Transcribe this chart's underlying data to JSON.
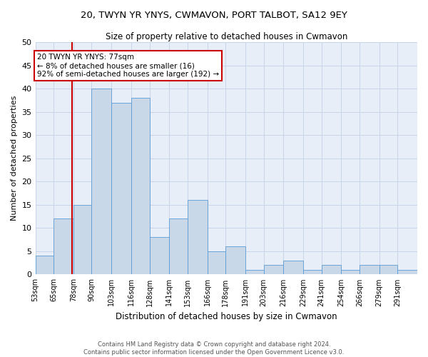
{
  "title": "20, TWYN YR YNYS, CWMAVON, PORT TALBOT, SA12 9EY",
  "subtitle": "Size of property relative to detached houses in Cwmavon",
  "xlabel": "Distribution of detached houses by size in Cwmavon",
  "ylabel": "Number of detached properties",
  "bar_color": "#c8d8e8",
  "bar_edge_color": "#5b9bd5",
  "grid_color": "#c8d4e8",
  "background_color": "#e8eef8",
  "vline_x": 77,
  "vline_color": "#cc0000",
  "annotation_box_color": "#cc0000",
  "annotation_lines": [
    "20 TWYN YR YNYS: 77sqm",
    "← 8% of detached houses are smaller (16)",
    "92% of semi-detached houses are larger (192) →"
  ],
  "bins": [
    53,
    65,
    78,
    90,
    103,
    116,
    128,
    141,
    153,
    166,
    178,
    191,
    203,
    216,
    229,
    241,
    254,
    266,
    279,
    291,
    304
  ],
  "counts": [
    4,
    12,
    15,
    40,
    37,
    38,
    8,
    12,
    16,
    5,
    6,
    1,
    2,
    3,
    1,
    2,
    1,
    2,
    2,
    1
  ],
  "yticks": [
    0,
    5,
    10,
    15,
    20,
    25,
    30,
    35,
    40,
    45,
    50
  ],
  "ylim": [
    0,
    50
  ],
  "footer_line1": "Contains HM Land Registry data © Crown copyright and database right 2024.",
  "footer_line2": "Contains public sector information licensed under the Open Government Licence v3.0."
}
